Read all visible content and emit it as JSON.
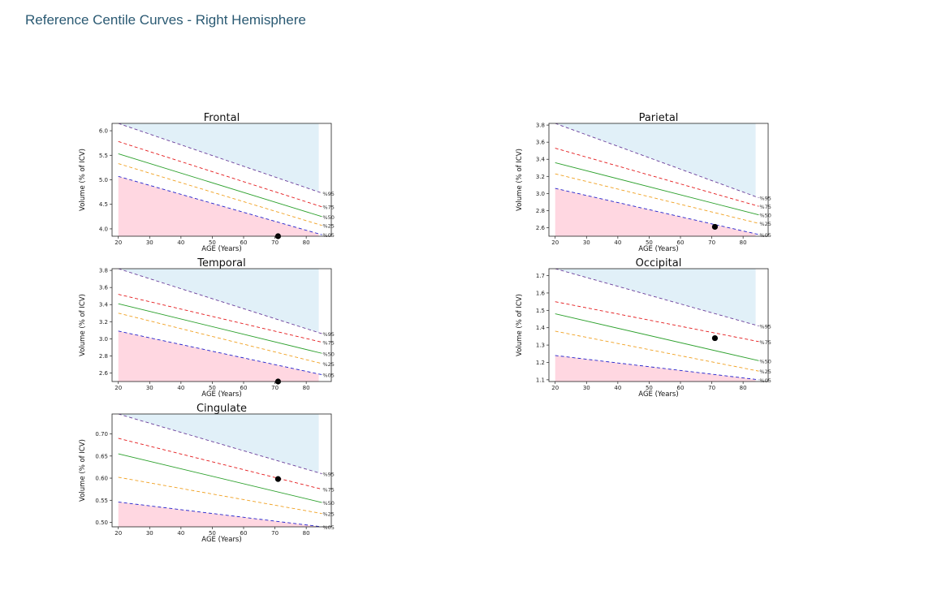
{
  "page": {
    "title": "Reference Centile Curves - Right Hemisphere"
  },
  "chart_data": [
    {
      "type": "line",
      "title": "Frontal",
      "xlabel": "AGE (Years)",
      "ylabel": "Volume (% of ICV)",
      "xlim": [
        18,
        88
      ],
      "ylim": [
        3.85,
        6.15
      ],
      "x_tick_labels": [
        "20",
        "30",
        "40",
        "50",
        "60",
        "70",
        "80"
      ],
      "y_tick_labels": [
        "4.0",
        "4.5",
        "5.0",
        "5.5",
        "6.0"
      ],
      "centiles": [
        {
          "name": "%95",
          "x": [
            20,
            85
          ],
          "y": [
            6.15,
            4.73
          ]
        },
        {
          "name": "%75",
          "x": [
            20,
            85
          ],
          "y": [
            5.78,
            4.45
          ]
        },
        {
          "name": "%50",
          "x": [
            20,
            85
          ],
          "y": [
            5.53,
            4.25
          ]
        },
        {
          "name": "%25",
          "x": [
            20,
            85
          ],
          "y": [
            5.33,
            4.07
          ]
        },
        {
          "name": "%05",
          "x": [
            20,
            85
          ],
          "y": [
            5.07,
            3.88
          ]
        }
      ],
      "subject": {
        "x": 71,
        "y": 3.85
      }
    },
    {
      "type": "line",
      "title": "Parietal",
      "xlabel": "AGE (Years)",
      "ylabel": "Volume (% of ICV)",
      "xlim": [
        18,
        88
      ],
      "ylim": [
        2.5,
        3.82
      ],
      "x_tick_labels": [
        "20",
        "30",
        "40",
        "50",
        "60",
        "70",
        "80"
      ],
      "y_tick_labels": [
        "2.6",
        "2.8",
        "3.0",
        "3.2",
        "3.4",
        "3.6",
        "3.8"
      ],
      "centiles": [
        {
          "name": "%95",
          "x": [
            20,
            85
          ],
          "y": [
            3.82,
            2.95
          ]
        },
        {
          "name": "%75",
          "x": [
            20,
            85
          ],
          "y": [
            3.53,
            2.85
          ]
        },
        {
          "name": "%50",
          "x": [
            20,
            85
          ],
          "y": [
            3.36,
            2.75
          ]
        },
        {
          "name": "%25",
          "x": [
            20,
            85
          ],
          "y": [
            3.23,
            2.65
          ]
        },
        {
          "name": "%05",
          "x": [
            20,
            85
          ],
          "y": [
            3.06,
            2.52
          ]
        }
      ],
      "subject": {
        "x": 71,
        "y": 2.61
      }
    },
    {
      "type": "line",
      "title": "Temporal",
      "xlabel": "AGE (Years)",
      "ylabel": "Volume (% of ICV)",
      "xlim": [
        18,
        88
      ],
      "ylim": [
        2.5,
        3.82
      ],
      "x_tick_labels": [
        "20",
        "30",
        "40",
        "50",
        "60",
        "70",
        "80"
      ],
      "y_tick_labels": [
        "2.6",
        "2.8",
        "3.0",
        "3.2",
        "3.4",
        "3.6",
        "3.8"
      ],
      "centiles": [
        {
          "name": "%95",
          "x": [
            20,
            85
          ],
          "y": [
            3.82,
            3.06
          ]
        },
        {
          "name": "%75",
          "x": [
            20,
            85
          ],
          "y": [
            3.52,
            2.96
          ]
        },
        {
          "name": "%50",
          "x": [
            20,
            85
          ],
          "y": [
            3.41,
            2.83
          ]
        },
        {
          "name": "%25",
          "x": [
            20,
            85
          ],
          "y": [
            3.3,
            2.71
          ]
        },
        {
          "name": "%05",
          "x": [
            20,
            85
          ],
          "y": [
            3.09,
            2.58
          ]
        }
      ],
      "subject": {
        "x": 71,
        "y": 2.5
      }
    },
    {
      "type": "line",
      "title": "Occipital",
      "xlabel": "AGE (Years)",
      "ylabel": "Volume (% of ICV)",
      "xlim": [
        18,
        88
      ],
      "ylim": [
        1.09,
        1.74
      ],
      "x_tick_labels": [
        "20",
        "30",
        "40",
        "50",
        "60",
        "70",
        "80"
      ],
      "y_tick_labels": [
        "1.1",
        "1.2",
        "1.3",
        "1.4",
        "1.5",
        "1.6",
        "1.7"
      ],
      "centiles": [
        {
          "name": "%95",
          "x": [
            20,
            85
          ],
          "y": [
            1.74,
            1.41
          ]
        },
        {
          "name": "%75",
          "x": [
            20,
            85
          ],
          "y": [
            1.55,
            1.32
          ]
        },
        {
          "name": "%50",
          "x": [
            20,
            85
          ],
          "y": [
            1.48,
            1.21
          ]
        },
        {
          "name": "%25",
          "x": [
            20,
            85
          ],
          "y": [
            1.38,
            1.15
          ]
        },
        {
          "name": "%05",
          "x": [
            20,
            85
          ],
          "y": [
            1.24,
            1.1
          ]
        }
      ],
      "subject": {
        "x": 71,
        "y": 1.34
      }
    },
    {
      "type": "line",
      "title": "Cingulate",
      "xlabel": "AGE (Years)",
      "ylabel": "Volume (% of ICV)",
      "xlim": [
        18,
        88
      ],
      "ylim": [
        0.49,
        0.745
      ],
      "x_tick_labels": [
        "20",
        "30",
        "40",
        "50",
        "60",
        "70",
        "80"
      ],
      "y_tick_labels": [
        "0.50",
        "0.55",
        "0.60",
        "0.65",
        "0.70"
      ],
      "centiles": [
        {
          "name": "%95",
          "x": [
            20,
            85
          ],
          "y": [
            0.745,
            0.61
          ]
        },
        {
          "name": "%75",
          "x": [
            20,
            85
          ],
          "y": [
            0.69,
            0.575
          ]
        },
        {
          "name": "%50",
          "x": [
            20,
            85
          ],
          "y": [
            0.655,
            0.545
          ]
        },
        {
          "name": "%25",
          "x": [
            20,
            85
          ],
          "y": [
            0.602,
            0.52
          ]
        },
        {
          "name": "%05",
          "x": [
            20,
            85
          ],
          "y": [
            0.546,
            0.49
          ]
        }
      ],
      "subject": {
        "x": 71,
        "y": 0.598
      }
    }
  ]
}
